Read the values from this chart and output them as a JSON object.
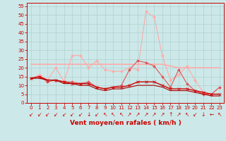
{
  "background_color": "#cce8e8",
  "grid_color": "#aacccc",
  "xlabel": "Vent moyen/en rafales ( km/h )",
  "xlabel_color": "#cc0000",
  "xlabel_fontsize": 6.5,
  "tick_color": "#cc0000",
  "ylim": [
    0,
    57
  ],
  "yticks": [
    0,
    5,
    10,
    15,
    20,
    25,
    30,
    35,
    40,
    45,
    50,
    55
  ],
  "xlim": [
    -0.5,
    23.5
  ],
  "xticks": [
    0,
    1,
    2,
    3,
    4,
    5,
    6,
    7,
    8,
    9,
    10,
    11,
    12,
    13,
    14,
    15,
    16,
    17,
    18,
    19,
    20,
    21,
    22,
    23
  ],
  "series": [
    {
      "x": [
        0,
        1,
        2,
        3,
        4,
        5,
        6,
        7,
        8,
        9,
        10,
        11,
        12,
        13,
        14,
        15,
        16,
        17,
        18,
        19,
        20,
        21,
        22,
        23
      ],
      "y": [
        22,
        22,
        22,
        22,
        22,
        22,
        22,
        22,
        22,
        22,
        22,
        22,
        22,
        22,
        22,
        22,
        22,
        21,
        20,
        20,
        20,
        20,
        20,
        20
      ],
      "color": "#ffaaaa",
      "linewidth": 1.2,
      "marker": null,
      "markersize": 0
    },
    {
      "x": [
        0,
        1,
        2,
        3,
        4,
        5,
        6,
        7,
        8,
        9,
        10,
        11,
        12,
        13,
        14,
        15,
        16,
        17,
        18,
        19,
        20,
        21,
        22,
        23
      ],
      "y": [
        14,
        16,
        13,
        20,
        12,
        27,
        27,
        20,
        24,
        19,
        18,
        18,
        20,
        19,
        52,
        49,
        27,
        13,
        16,
        21,
        13,
        6,
        5,
        9
      ],
      "color": "#ffaaaa",
      "linewidth": 0.8,
      "marker": "D",
      "markersize": 1.8
    },
    {
      "x": [
        0,
        1,
        2,
        3,
        4,
        5,
        6,
        7,
        8,
        9,
        10,
        11,
        12,
        13,
        14,
        15,
        16,
        17,
        18,
        19,
        20,
        21,
        22,
        23
      ],
      "y": [
        14,
        15,
        12,
        13,
        12,
        12,
        11,
        12,
        9,
        8,
        9,
        10,
        19,
        24,
        23,
        21,
        15,
        9,
        19,
        11,
        7,
        5,
        5,
        9
      ],
      "color": "#dd5555",
      "linewidth": 0.8,
      "marker": "D",
      "markersize": 1.8
    },
    {
      "x": [
        0,
        1,
        2,
        3,
        4,
        5,
        6,
        7,
        8,
        9,
        10,
        11,
        12,
        13,
        14,
        15,
        16,
        17,
        18,
        19,
        20,
        21,
        22,
        23
      ],
      "y": [
        14,
        15,
        13,
        13,
        12,
        11,
        11,
        11,
        9,
        8,
        9,
        9,
        10,
        12,
        12,
        12,
        10,
        8,
        8,
        8,
        7,
        6,
        5,
        5
      ],
      "color": "#cc0000",
      "linewidth": 1.0,
      "marker": "x",
      "markersize": 2.5
    },
    {
      "x": [
        0,
        1,
        2,
        3,
        4,
        5,
        6,
        7,
        8,
        9,
        10,
        11,
        12,
        13,
        14,
        15,
        16,
        17,
        18,
        19,
        20,
        21,
        22,
        23
      ],
      "y": [
        14,
        14,
        13,
        13,
        11,
        11,
        10,
        10,
        8,
        7,
        8,
        8,
        9,
        10,
        10,
        10,
        9,
        7,
        7,
        7,
        6,
        5,
        4,
        4
      ],
      "color": "#aa0000",
      "linewidth": 0.8,
      "marker": null,
      "markersize": 0
    }
  ],
  "wind_chars": [
    "↙",
    "↙",
    "↙",
    "↙",
    "↙",
    "↙",
    "↙",
    "↓",
    "↙",
    "↖",
    "↖",
    "↖",
    "↗",
    "↗",
    "↗",
    "↗",
    "↗",
    "↑",
    "↗",
    "↖",
    "↙",
    "↓",
    "←",
    "↖"
  ],
  "arrow_fontsize": 5.5
}
